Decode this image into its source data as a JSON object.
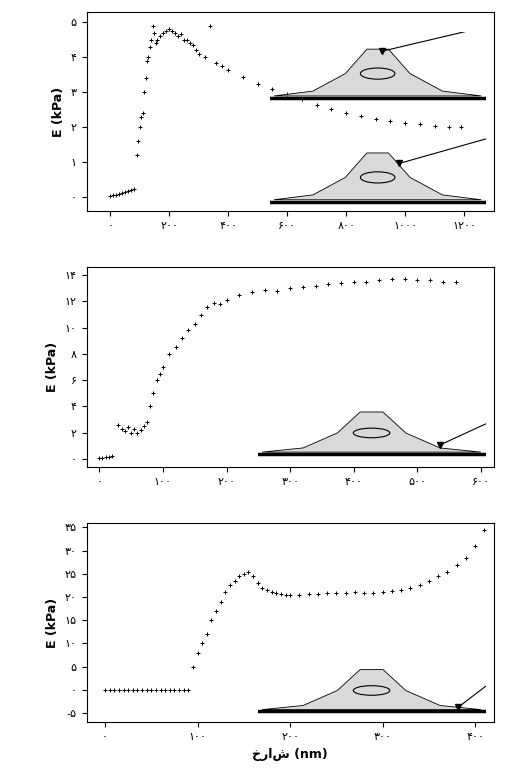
{
  "chart_data": [
    {
      "type": "scatter",
      "y_label": "E (kPa)",
      "color": "#000000",
      "marker": "+",
      "x": [
        0,
        10,
        20,
        30,
        40,
        50,
        60,
        70,
        80,
        90,
        95,
        100,
        105,
        110,
        115,
        120,
        125,
        130,
        135,
        140,
        145,
        150,
        155,
        160,
        170,
        180,
        190,
        200,
        210,
        220,
        230,
        240,
        250,
        260,
        270,
        280,
        290,
        300,
        320,
        340,
        360,
        380,
        400,
        450,
        500,
        550,
        600,
        650,
        700,
        750,
        800,
        850,
        900,
        950,
        1000,
        1050,
        1100,
        1150,
        1190
      ],
      "values": [
        0.05,
        0.06,
        0.08,
        0.1,
        0.12,
        0.15,
        0.18,
        0.2,
        0.25,
        1.2,
        1.6,
        2.0,
        2.3,
        2.4,
        3.0,
        3.4,
        3.9,
        4.0,
        4.3,
        4.5,
        4.9,
        4.7,
        4.4,
        4.5,
        4.6,
        4.7,
        4.75,
        4.8,
        4.75,
        4.7,
        4.6,
        4.65,
        4.5,
        4.5,
        4.4,
        4.35,
        4.2,
        4.1,
        4.0,
        4.9,
        3.85,
        3.75,
        3.65,
        3.45,
        3.25,
        3.1,
        2.95,
        2.8,
        2.65,
        2.52,
        2.42,
        2.33,
        2.25,
        2.18,
        2.12,
        2.08,
        2.05,
        2.02,
        2.0
      ],
      "xlim": [
        -80,
        1300
      ],
      "ylim": [
        -0.4,
        5.3
      ],
      "xticks": [
        {
          "value": 0,
          "label": "۰"
        },
        {
          "value": 200,
          "label": "۲۰۰"
        },
        {
          "value": 400,
          "label": "۴۰۰"
        },
        {
          "value": 600,
          "label": "۶۰۰"
        },
        {
          "value": 800,
          "label": "۸۰۰"
        },
        {
          "value": 1000,
          "label": "۱۰۰۰"
        },
        {
          "value": 1200,
          "label": "۱۲۰۰"
        }
      ],
      "yticks": [
        {
          "value": 0,
          "label": "۰"
        },
        {
          "value": 1,
          "label": "۱"
        },
        {
          "value": 2,
          "label": "۲"
        },
        {
          "value": 3,
          "label": "۳"
        },
        {
          "value": 4,
          "label": "۴"
        },
        {
          "value": 5,
          "label": "۵"
        }
      ]
    },
    {
      "type": "scatter",
      "y_label": "E (kPa)",
      "color": "#000000",
      "marker": "+",
      "x": [
        0,
        5,
        10,
        15,
        20,
        30,
        35,
        40,
        45,
        50,
        55,
        60,
        65,
        70,
        75,
        80,
        85,
        90,
        95,
        100,
        110,
        120,
        130,
        140,
        150,
        160,
        170,
        180,
        190,
        200,
        220,
        240,
        260,
        280,
        300,
        320,
        340,
        360,
        380,
        400,
        420,
        440,
        460,
        480,
        500,
        520,
        540,
        560
      ],
      "values": [
        0.1,
        0.1,
        0.15,
        0.15,
        0.2,
        2.6,
        2.3,
        2.1,
        2.4,
        2.0,
        2.3,
        2.0,
        2.2,
        2.5,
        2.8,
        4.0,
        5.0,
        6.0,
        6.5,
        7.0,
        8.0,
        8.5,
        9.2,
        9.8,
        10.3,
        11.0,
        11.6,
        11.9,
        11.8,
        12.1,
        12.5,
        12.7,
        12.9,
        12.8,
        13.0,
        13.1,
        13.2,
        13.3,
        13.4,
        13.5,
        13.5,
        13.6,
        13.7,
        13.7,
        13.6,
        13.6,
        13.5,
        13.5
      ],
      "xlim": [
        -20,
        620
      ],
      "ylim": [
        -0.6,
        14.6
      ],
      "xticks": [
        {
          "value": 0,
          "label": "۰"
        },
        {
          "value": 100,
          "label": "۱۰۰"
        },
        {
          "value": 200,
          "label": "۲۰۰"
        },
        {
          "value": 300,
          "label": "۳۰۰"
        },
        {
          "value": 400,
          "label": "۴۰۰"
        },
        {
          "value": 500,
          "label": "۵۰۰"
        },
        {
          "value": 600,
          "label": "۶۰۰"
        }
      ],
      "yticks": [
        {
          "value": 0,
          "label": "۰"
        },
        {
          "value": 2,
          "label": "۲"
        },
        {
          "value": 4,
          "label": "۴"
        },
        {
          "value": 6,
          "label": "۶"
        },
        {
          "value": 8,
          "label": "۸"
        },
        {
          "value": 10,
          "label": "۱۰"
        },
        {
          "value": 12,
          "label": "۱۲"
        },
        {
          "value": 14,
          "label": "۱۴"
        }
      ]
    },
    {
      "type": "scatter",
      "y_label": "E (kPa)",
      "x_label": "خراش (nm)",
      "color": "#000000",
      "marker": "+",
      "x": [
        0,
        5,
        10,
        15,
        20,
        25,
        30,
        35,
        40,
        45,
        50,
        55,
        60,
        65,
        70,
        75,
        80,
        85,
        90,
        95,
        100,
        105,
        110,
        115,
        120,
        125,
        130,
        135,
        140,
        145,
        150,
        155,
        160,
        165,
        170,
        175,
        180,
        185,
        190,
        195,
        200,
        210,
        220,
        230,
        240,
        250,
        260,
        270,
        280,
        290,
        300,
        310,
        320,
        330,
        340,
        350,
        360,
        370,
        380,
        390,
        400,
        410
      ],
      "values": [
        0,
        0,
        0,
        0,
        0,
        0,
        0,
        0,
        0,
        0,
        0,
        0,
        0,
        0,
        0,
        0,
        0,
        0,
        0,
        5,
        8,
        10,
        12,
        15,
        17,
        19,
        21,
        22.5,
        23.5,
        24.5,
        25,
        25.5,
        24.5,
        23,
        22,
        21.5,
        21,
        20.8,
        20.6,
        20.5,
        20.5,
        20.5,
        20.6,
        20.7,
        20.8,
        20.8,
        20.9,
        21,
        20.9,
        20.8,
        21,
        21.2,
        21.5,
        22,
        22.5,
        23.5,
        24.5,
        25.5,
        27,
        28.5,
        31,
        34.5
      ],
      "xlim": [
        -20,
        420
      ],
      "ylim": [
        -7,
        36
      ],
      "xticks": [
        {
          "value": 0,
          "label": "۰"
        },
        {
          "value": 100,
          "label": "۱۰۰"
        },
        {
          "value": 200,
          "label": "۲۰۰"
        },
        {
          "value": 300,
          "label": "۳۰۰"
        },
        {
          "value": 400,
          "label": "۴۰۰"
        }
      ],
      "yticks": [
        {
          "value": -5,
          "label": "-۵"
        },
        {
          "value": 0,
          "label": "۰"
        },
        {
          "value": 5,
          "label": "۵"
        },
        {
          "value": 10,
          "label": "۱۰"
        },
        {
          "value": 15,
          "label": "۱۵"
        },
        {
          "value": 20,
          "label": "۲۰"
        },
        {
          "value": 25,
          "label": "۲۵"
        },
        {
          "value": 30,
          "label": "۳۰"
        },
        {
          "value": 35,
          "label": "۳۵"
        }
      ]
    }
  ]
}
